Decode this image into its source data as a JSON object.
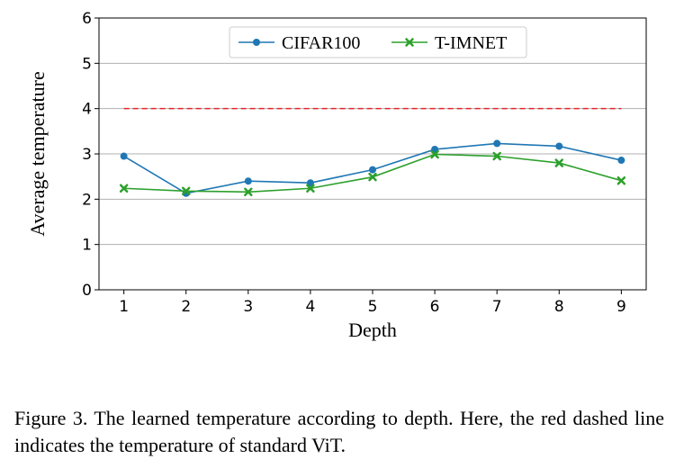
{
  "chart_data": {
    "type": "line",
    "xlabel": "Depth",
    "ylabel": "Average temperature",
    "x": [
      1,
      2,
      3,
      4,
      5,
      6,
      7,
      8,
      9
    ],
    "xticks": [
      "1",
      "2",
      "3",
      "4",
      "5",
      "6",
      "7",
      "8",
      "9"
    ],
    "yticks": [
      "0",
      "1",
      "2",
      "3",
      "4",
      "5",
      "6"
    ],
    "xlim": [
      0.6,
      9.4
    ],
    "ylim": [
      0,
      6
    ],
    "grid": "horizontal",
    "legend_position": "top-center",
    "series": [
      {
        "name": "CIFAR100",
        "color": "#1f77b4",
        "marker": "circle",
        "values": [
          2.95,
          2.13,
          2.4,
          2.36,
          2.65,
          3.1,
          3.23,
          3.17,
          2.86
        ]
      },
      {
        "name": "T-IMNET",
        "color": "#2ca02c",
        "marker": "x",
        "values": [
          2.24,
          2.18,
          2.16,
          2.24,
          2.49,
          2.99,
          2.95,
          2.8,
          2.41
        ]
      }
    ],
    "reference_line": {
      "y": 4,
      "x_from": 1,
      "x_to": 9,
      "color": "#e8262b",
      "style": "dashed"
    }
  },
  "caption": "Figure 3. The learned temperature according to depth. Here, the red dashed line indicates the temperature of standard ViT."
}
